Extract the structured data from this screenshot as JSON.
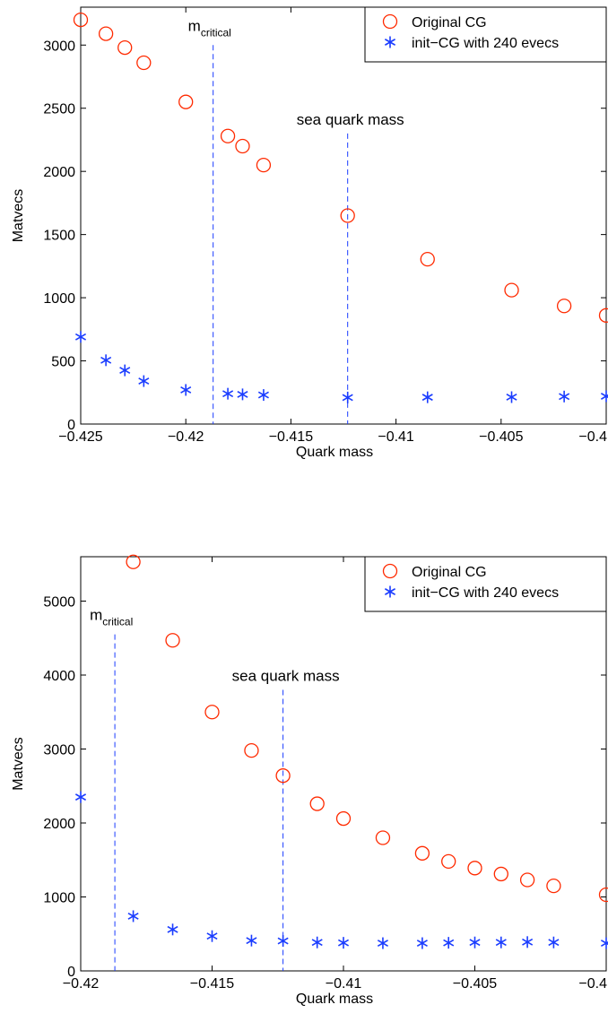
{
  "chart_data": [
    {
      "type": "scatter",
      "xlabel": "Quark mass",
      "ylabel": "Matvecs",
      "xlim": [
        -0.425,
        -0.4
      ],
      "ylim": [
        0,
        3300
      ],
      "xticks": [
        -0.425,
        -0.42,
        -0.415,
        -0.41,
        -0.405,
        -0.4
      ],
      "xtick_labels": [
        "−0.425",
        "−0.42",
        "−0.415",
        "−0.41",
        "−0.405",
        "−0.4"
      ],
      "yticks": [
        0,
        500,
        1000,
        1500,
        2000,
        2500,
        3000
      ],
      "ytick_labels": [
        "0",
        "500",
        "1000",
        "1500",
        "2000",
        "2500",
        "3000"
      ],
      "legend_position": "top-right",
      "grid": false,
      "series": [
        {
          "name": "Original CG",
          "marker": "circle",
          "color": "#ff2a00",
          "x": [
            -0.425,
            -0.4238,
            -0.4229,
            -0.422,
            -0.42,
            -0.418,
            -0.4173,
            -0.4163,
            -0.4123,
            -0.4085,
            -0.4045,
            -0.402,
            -0.4
          ],
          "y": [
            3200,
            3090,
            2980,
            2860,
            2550,
            2280,
            2200,
            2050,
            1650,
            1305,
            1060,
            935,
            860
          ]
        },
        {
          "name": "init−CG with 240 evecs",
          "marker": "asterisk",
          "color": "#1a3cff",
          "x": [
            -0.425,
            -0.4238,
            -0.4229,
            -0.422,
            -0.42,
            -0.418,
            -0.4173,
            -0.4163,
            -0.4123,
            -0.4085,
            -0.4045,
            -0.402,
            -0.4
          ],
          "y": [
            690,
            505,
            425,
            340,
            270,
            240,
            235,
            230,
            210,
            212,
            213,
            218,
            220
          ]
        }
      ],
      "vlines": [
        {
          "x": -0.4187,
          "ymax": 3000,
          "label_main": "m",
          "label_sub": "critical"
        },
        {
          "x": -0.4123,
          "ymax": 2300,
          "label_main": "sea quark mass",
          "label_sub": ""
        }
      ]
    },
    {
      "type": "scatter",
      "xlabel": "Quark mass",
      "ylabel": "Matvecs",
      "xlim": [
        -0.42,
        -0.4
      ],
      "ylim": [
        0,
        5600
      ],
      "xticks": [
        -0.42,
        -0.415,
        -0.41,
        -0.405,
        -0.4
      ],
      "xtick_labels": [
        "−0.42",
        "−0.415",
        "−0.41",
        "−0.405",
        "−0.4"
      ],
      "yticks": [
        0,
        1000,
        2000,
        3000,
        4000,
        5000
      ],
      "ytick_labels": [
        "0",
        "1000",
        "2000",
        "3000",
        "4000",
        "5000"
      ],
      "legend_position": "top-right",
      "grid": false,
      "series": [
        {
          "name": "Original CG",
          "marker": "circle",
          "color": "#ff2a00",
          "x": [
            -0.418,
            -0.4165,
            -0.415,
            -0.4135,
            -0.4123,
            -0.411,
            -0.41,
            -0.4085,
            -0.407,
            -0.406,
            -0.405,
            -0.404,
            -0.403,
            -0.402,
            -0.4
          ],
          "y": [
            5530,
            4470,
            3500,
            2980,
            2640,
            2260,
            2060,
            1800,
            1590,
            1480,
            1390,
            1310,
            1230,
            1150,
            1030
          ]
        },
        {
          "name": "init−CG with 240 evecs",
          "marker": "asterisk",
          "color": "#1a3cff",
          "x": [
            -0.42,
            -0.418,
            -0.4165,
            -0.415,
            -0.4135,
            -0.4123,
            -0.411,
            -0.41,
            -0.4085,
            -0.407,
            -0.406,
            -0.405,
            -0.404,
            -0.403,
            -0.402,
            -0.4
          ],
          "y": [
            2350,
            740,
            560,
            470,
            410,
            405,
            385,
            380,
            375,
            375,
            380,
            385,
            385,
            390,
            385,
            375
          ]
        }
      ],
      "vlines": [
        {
          "x": -0.4187,
          "ymax": 4550,
          "label_main": "m",
          "label_sub": "critical"
        },
        {
          "x": -0.4123,
          "ymax": 3800,
          "label_main": "sea quark mass",
          "label_sub": ""
        }
      ]
    }
  ]
}
